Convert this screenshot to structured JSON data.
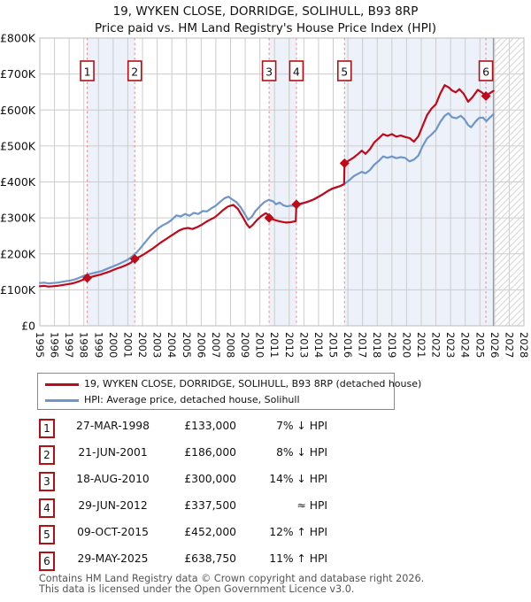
{
  "title": {
    "line1": "19, WYKEN CLOSE, DORRIDGE, SOLIHULL, B93 8RP",
    "line2": "Price paid vs. HM Land Registry's House Price Index (HPI)"
  },
  "colors": {
    "price_paid": "#bf0a1a",
    "hpi": "#6f96c9",
    "grid": "#cccccc",
    "plot_border": "#bbbbbb",
    "band_fill": "#edf1fa",
    "sale_dash": "#f0908f",
    "marker_box_border": "#b01117",
    "data_end_line": "#999999",
    "hatch_line": "#d4d4d4"
  },
  "chart_data": {
    "type": "line",
    "x_axis": {
      "min": 1995,
      "max": 2028,
      "tick_labels": [
        "1995",
        "1996",
        "1997",
        "1998",
        "1999",
        "2000",
        "2001",
        "2002",
        "2003",
        "2004",
        "2005",
        "2006",
        "2007",
        "2008",
        "2009",
        "2010",
        "2011",
        "2012",
        "2013",
        "2014",
        "2015",
        "2016",
        "2017",
        "2018",
        "2019",
        "2020",
        "2021",
        "2022",
        "2023",
        "2024",
        "2025",
        "2026",
        "2027",
        "2028"
      ]
    },
    "y_axis": {
      "min": 0,
      "max": 800000,
      "tick_step": 100000,
      "tick_labels": [
        "£0",
        "£100K",
        "£200K",
        "£300K",
        "£400K",
        "£500K",
        "£600K",
        "£700K",
        "£800K"
      ]
    },
    "ownership_bands": [
      [
        1998.23,
        2001.47
      ],
      [
        2010.63,
        2012.49
      ],
      [
        2015.77,
        2025.92
      ]
    ],
    "data_end_year": 2025.92,
    "future_hatch": [
      2025.92,
      2028
    ],
    "series": [
      {
        "name": "hpi-average-price",
        "color": "#6f96c9",
        "points": [
          [
            1995.0,
            119000
          ],
          [
            1995.3,
            120000
          ],
          [
            1995.6,
            118000
          ],
          [
            1995.9,
            119000
          ],
          [
            1996.2,
            120000
          ],
          [
            1996.5,
            122000
          ],
          [
            1996.8,
            124000
          ],
          [
            1997.1,
            126000
          ],
          [
            1997.4,
            129000
          ],
          [
            1997.7,
            134000
          ],
          [
            1998.0,
            139000
          ],
          [
            1998.3,
            143000
          ],
          [
            1998.6,
            146000
          ],
          [
            1998.9,
            149000
          ],
          [
            1999.2,
            152000
          ],
          [
            1999.5,
            157000
          ],
          [
            1999.8,
            162000
          ],
          [
            2000.1,
            167000
          ],
          [
            2000.4,
            172000
          ],
          [
            2000.7,
            178000
          ],
          [
            2001.0,
            184000
          ],
          [
            2001.3,
            193000
          ],
          [
            2001.6,
            204000
          ],
          [
            2001.9,
            218000
          ],
          [
            2002.2,
            233000
          ],
          [
            2002.5,
            248000
          ],
          [
            2002.8,
            261000
          ],
          [
            2003.1,
            272000
          ],
          [
            2003.4,
            280000
          ],
          [
            2003.7,
            286000
          ],
          [
            2004.0,
            295000
          ],
          [
            2004.3,
            307000
          ],
          [
            2004.6,
            304000
          ],
          [
            2004.9,
            311000
          ],
          [
            2005.2,
            306000
          ],
          [
            2005.5,
            314000
          ],
          [
            2005.8,
            311000
          ],
          [
            2006.1,
            319000
          ],
          [
            2006.4,
            318000
          ],
          [
            2006.7,
            327000
          ],
          [
            2007.0,
            334000
          ],
          [
            2007.3,
            345000
          ],
          [
            2007.6,
            355000
          ],
          [
            2007.85,
            359000
          ],
          [
            2008.1,
            352000
          ],
          [
            2008.4,
            344000
          ],
          [
            2008.7,
            329000
          ],
          [
            2009.0,
            309000
          ],
          [
            2009.2,
            295000
          ],
          [
            2009.45,
            303000
          ],
          [
            2009.7,
            319000
          ],
          [
            2010.0,
            332000
          ],
          [
            2010.3,
            344000
          ],
          [
            2010.6,
            350000
          ],
          [
            2010.9,
            346000
          ],
          [
            2011.1,
            338000
          ],
          [
            2011.35,
            343000
          ],
          [
            2011.6,
            335000
          ],
          [
            2011.85,
            332000
          ],
          [
            2012.1,
            334000
          ],
          [
            2012.4,
            333000
          ],
          [
            2012.7,
            337000
          ],
          [
            2013.0,
            341000
          ],
          [
            2013.3,
            345000
          ],
          [
            2013.6,
            350000
          ],
          [
            2013.9,
            356000
          ],
          [
            2014.2,
            363000
          ],
          [
            2014.5,
            371000
          ],
          [
            2014.8,
            378000
          ],
          [
            2015.1,
            383000
          ],
          [
            2015.4,
            387000
          ],
          [
            2015.75,
            394000
          ],
          [
            2016.1,
            405000
          ],
          [
            2016.4,
            416000
          ],
          [
            2016.7,
            423000
          ],
          [
            2016.95,
            428000
          ],
          [
            2017.2,
            424000
          ],
          [
            2017.5,
            433000
          ],
          [
            2017.8,
            448000
          ],
          [
            2018.1,
            458000
          ],
          [
            2018.4,
            471000
          ],
          [
            2018.7,
            467000
          ],
          [
            2019.0,
            471000
          ],
          [
            2019.3,
            466000
          ],
          [
            2019.6,
            469000
          ],
          [
            2019.9,
            467000
          ],
          [
            2020.2,
            457000
          ],
          [
            2020.5,
            462000
          ],
          [
            2020.8,
            473000
          ],
          [
            2021.1,
            500000
          ],
          [
            2021.4,
            521000
          ],
          [
            2021.7,
            532000
          ],
          [
            2022.0,
            544000
          ],
          [
            2022.3,
            567000
          ],
          [
            2022.6,
            584000
          ],
          [
            2022.85,
            591000
          ],
          [
            2023.1,
            580000
          ],
          [
            2023.4,
            577000
          ],
          [
            2023.7,
            584000
          ],
          [
            2023.95,
            574000
          ],
          [
            2024.2,
            558000
          ],
          [
            2024.4,
            552000
          ],
          [
            2024.7,
            568000
          ],
          [
            2024.95,
            578000
          ],
          [
            2025.2,
            579000
          ],
          [
            2025.45,
            569000
          ],
          [
            2025.7,
            580000
          ],
          [
            2025.92,
            588000
          ]
        ]
      },
      {
        "name": "price-paid",
        "color": "#bf0a1a",
        "points": [
          [
            1995.0,
            110000
          ],
          [
            1995.3,
            111000
          ],
          [
            1995.6,
            109000
          ],
          [
            1995.9,
            110000
          ],
          [
            1996.2,
            111000
          ],
          [
            1996.5,
            113000
          ],
          [
            1996.8,
            115000
          ],
          [
            1997.1,
            117000
          ],
          [
            1997.4,
            120000
          ],
          [
            1997.7,
            124000
          ],
          [
            1998.0,
            129000
          ],
          [
            1998.23,
            133000
          ],
          [
            1998.5,
            136000
          ],
          [
            1998.8,
            139000
          ],
          [
            1999.1,
            142000
          ],
          [
            1999.4,
            146000
          ],
          [
            1999.7,
            150000
          ],
          [
            2000.0,
            155000
          ],
          [
            2000.3,
            160000
          ],
          [
            2000.6,
            164000
          ],
          [
            2000.9,
            169000
          ],
          [
            2001.2,
            175000
          ],
          [
            2001.47,
            186000
          ],
          [
            2001.8,
            192000
          ],
          [
            2002.1,
            199000
          ],
          [
            2002.4,
            207000
          ],
          [
            2002.7,
            215000
          ],
          [
            2003.0,
            224000
          ],
          [
            2003.3,
            233000
          ],
          [
            2003.6,
            241000
          ],
          [
            2003.9,
            249000
          ],
          [
            2004.2,
            257000
          ],
          [
            2004.5,
            265000
          ],
          [
            2004.8,
            270000
          ],
          [
            2005.1,
            272000
          ],
          [
            2005.4,
            269000
          ],
          [
            2005.7,
            274000
          ],
          [
            2006.0,
            280000
          ],
          [
            2006.3,
            288000
          ],
          [
            2006.6,
            295000
          ],
          [
            2006.9,
            301000
          ],
          [
            2007.2,
            311000
          ],
          [
            2007.5,
            322000
          ],
          [
            2007.8,
            331000
          ],
          [
            2008.0,
            334000
          ],
          [
            2008.2,
            336000
          ],
          [
            2008.5,
            325000
          ],
          [
            2008.8,
            305000
          ],
          [
            2009.1,
            283000
          ],
          [
            2009.3,
            273000
          ],
          [
            2009.5,
            280000
          ],
          [
            2009.8,
            294000
          ],
          [
            2010.1,
            305000
          ],
          [
            2010.4,
            313000
          ],
          [
            2010.55,
            309000
          ],
          [
            2010.63,
            300000
          ],
          [
            2010.9,
            296000
          ],
          [
            2011.2,
            292000
          ],
          [
            2011.5,
            289000
          ],
          [
            2011.8,
            287000
          ],
          [
            2012.1,
            288000
          ],
          [
            2012.45,
            291000
          ],
          [
            2012.49,
            337500
          ],
          [
            2012.8,
            340000
          ],
          [
            2013.1,
            343000
          ],
          [
            2013.4,
            347000
          ],
          [
            2013.7,
            352000
          ],
          [
            2014.0,
            359000
          ],
          [
            2014.3,
            366000
          ],
          [
            2014.6,
            374000
          ],
          [
            2014.9,
            381000
          ],
          [
            2015.2,
            385000
          ],
          [
            2015.5,
            389000
          ],
          [
            2015.74,
            394000
          ],
          [
            2015.77,
            452000
          ],
          [
            2016.1,
            460000
          ],
          [
            2016.4,
            468000
          ],
          [
            2016.7,
            478000
          ],
          [
            2016.95,
            487000
          ],
          [
            2017.2,
            478000
          ],
          [
            2017.5,
            491000
          ],
          [
            2017.8,
            510000
          ],
          [
            2018.1,
            521000
          ],
          [
            2018.4,
            533000
          ],
          [
            2018.7,
            528000
          ],
          [
            2019.0,
            533000
          ],
          [
            2019.3,
            526000
          ],
          [
            2019.6,
            529000
          ],
          [
            2019.9,
            525000
          ],
          [
            2020.2,
            522000
          ],
          [
            2020.5,
            512000
          ],
          [
            2020.8,
            527000
          ],
          [
            2021.1,
            556000
          ],
          [
            2021.4,
            586000
          ],
          [
            2021.7,
            604000
          ],
          [
            2022.0,
            616000
          ],
          [
            2022.3,
            646000
          ],
          [
            2022.6,
            669000
          ],
          [
            2022.9,
            662000
          ],
          [
            2023.1,
            654000
          ],
          [
            2023.35,
            649000
          ],
          [
            2023.6,
            658000
          ],
          [
            2023.9,
            645000
          ],
          [
            2024.2,
            623000
          ],
          [
            2024.5,
            636000
          ],
          [
            2024.85,
            656000
          ],
          [
            2025.1,
            650000
          ],
          [
            2025.41,
            638750
          ],
          [
            2025.65,
            646000
          ],
          [
            2025.92,
            653000
          ]
        ]
      }
    ],
    "sale_markers": [
      {
        "n": "1",
        "year": 1998.23,
        "value": 133000
      },
      {
        "n": "2",
        "year": 2001.47,
        "value": 186000
      },
      {
        "n": "3",
        "year": 2010.63,
        "value": 300000
      },
      {
        "n": "4",
        "year": 2012.49,
        "value": 337500
      },
      {
        "n": "5",
        "year": 2015.77,
        "value": 452000
      },
      {
        "n": "6",
        "year": 2025.41,
        "value": 638750
      }
    ]
  },
  "legend": {
    "items": [
      {
        "series": "price-paid",
        "color": "#bf0a1a",
        "label": "19, WYKEN CLOSE, DORRIDGE, SOLIHULL, B93 8RP (detached house)"
      },
      {
        "series": "hpi",
        "color": "#6f96c9",
        "label": "HPI: Average price, detached house, Solihull"
      }
    ]
  },
  "transactions": [
    {
      "n": "1",
      "date": "27-MAR-1998",
      "price": "£133,000",
      "vs_hpi": "7% ↓ HPI"
    },
    {
      "n": "2",
      "date": "21-JUN-2001",
      "price": "£186,000",
      "vs_hpi": "8% ↓ HPI"
    },
    {
      "n": "3",
      "date": "18-AUG-2010",
      "price": "£300,000",
      "vs_hpi": "14% ↓ HPI"
    },
    {
      "n": "4",
      "date": "29-JUN-2012",
      "price": "£337,500",
      "vs_hpi": "≈ HPI"
    },
    {
      "n": "5",
      "date": "09-OCT-2015",
      "price": "£452,000",
      "vs_hpi": "12% ↑ HPI"
    },
    {
      "n": "6",
      "date": "29-MAY-2025",
      "price": "£638,750",
      "vs_hpi": "11% ↑ HPI"
    }
  ],
  "footer": {
    "line1": "Contains HM Land Registry data © Crown copyright and database right 2026.",
    "line2": "This data is licensed under the Open Government Licence v3.0."
  }
}
